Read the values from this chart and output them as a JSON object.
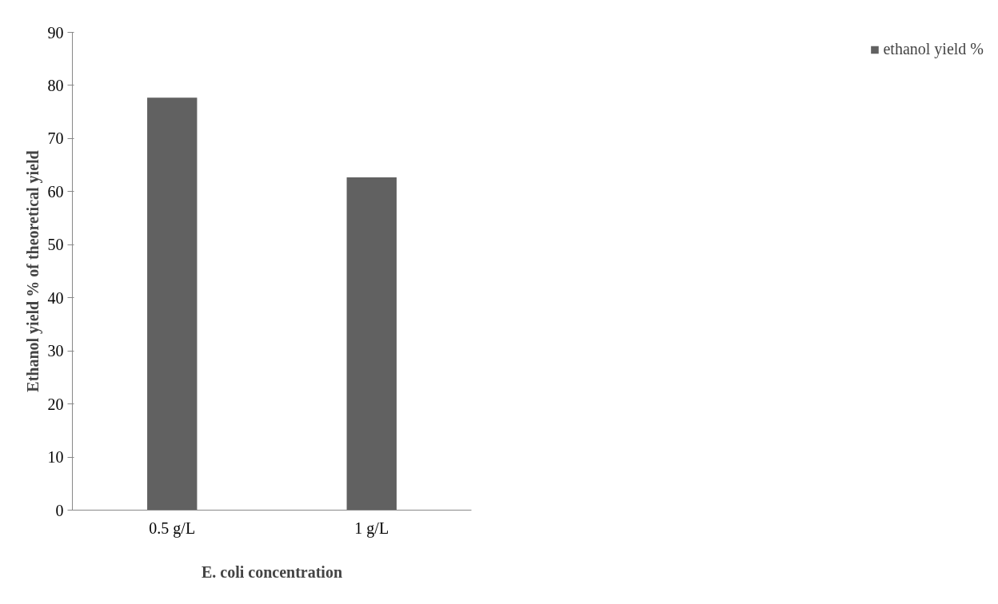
{
  "chart_data": {
    "type": "bar",
    "xlabel": "E. coli concentration",
    "ylabel": "Ethanol yield % of theoretical yield",
    "categories": [
      "0.5 g/L",
      "1 g/L"
    ],
    "series": [
      {
        "name": "ethanol yield %",
        "color": "#616161",
        "values": [
          77.7,
          62.7
        ]
      }
    ],
    "ylim": [
      0,
      90
    ],
    "yticks": [
      0,
      10,
      20,
      30,
      40,
      50,
      60,
      70,
      80,
      90
    ],
    "grid": false,
    "legend": "right"
  }
}
